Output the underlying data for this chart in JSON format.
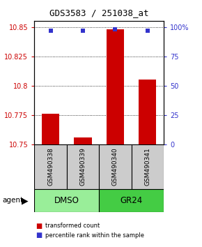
{
  "title": "GDS3583 / 251038_at",
  "samples": [
    "GSM490338",
    "GSM490339",
    "GSM490340",
    "GSM490341"
  ],
  "bar_values": [
    10.776,
    10.756,
    10.848,
    10.805
  ],
  "percentile_values": [
    97,
    97,
    98,
    97
  ],
  "ylim_left": [
    10.75,
    10.855
  ],
  "ylim_right": [
    0,
    105
  ],
  "yticks_left": [
    10.75,
    10.775,
    10.8,
    10.825,
    10.85
  ],
  "ytick_labels_left": [
    "10.75",
    "10.775",
    "10.8",
    "10.825",
    "10.85"
  ],
  "yticks_right": [
    0,
    25,
    50,
    75,
    100
  ],
  "ytick_labels_right": [
    "0",
    "25",
    "50",
    "75",
    "100%"
  ],
  "bar_color": "#cc0000",
  "dot_color": "#3333cc",
  "groups": [
    {
      "label": "DMSO",
      "color": "#99ee99"
    },
    {
      "label": "GR24",
      "color": "#44cc44"
    }
  ],
  "agent_label": "agent",
  "legend_items": [
    {
      "color": "#cc0000",
      "label": "transformed count"
    },
    {
      "color": "#3333cc",
      "label": "percentile rank within the sample"
    }
  ],
  "background_color": "#ffffff",
  "sample_box_color": "#cccccc",
  "bar_width": 0.55,
  "x_positions": [
    1,
    2,
    3,
    4
  ]
}
